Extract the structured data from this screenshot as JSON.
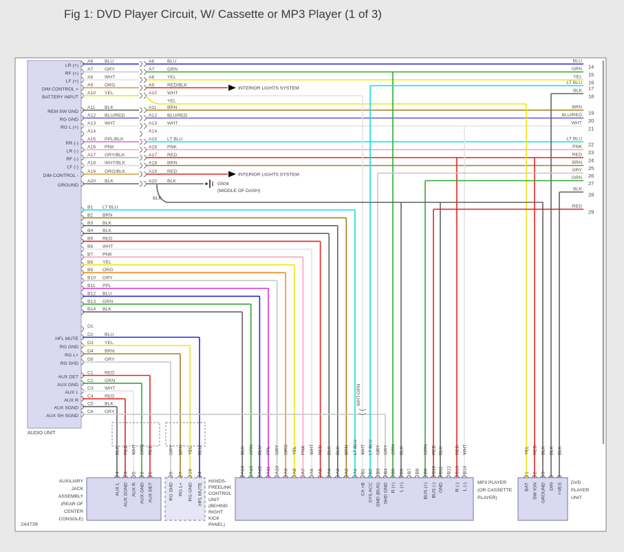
{
  "title": "Fig 1: DVD Player Circuit, W/ Cassette or MP3 Player (1 of 3)",
  "figure_code": "244738",
  "palette": {
    "BLU": "#2525d9",
    "GRN": "#2fa82f",
    "YEL": "#f2e50c",
    "LT BLU": "#0ae0e0",
    "BLK": "#616161",
    "BRN": "#a57d1c",
    "BLU/RED": "#6952d6",
    "WHT": "#e2e2e2",
    "PNK": "#ff9dbb",
    "RED": "#e42020",
    "GRY": "#c6c6c6",
    "ORG": "#ef8d20",
    "PPL": "#dd2fdd",
    "PPL/BLK": "#d465d4",
    "GRY/BLK": "#aeaeae",
    "WHT/BLK": "#d6d6d6",
    "ORG/BLK": "#d79a35",
    "RED/BLK": "#e42020",
    "WHT/GRN": "#cfe3cf"
  },
  "audio_unit": {
    "label": "AUDIO UNIT",
    "rows_a": [
      {
        "pin": "A6",
        "label": "LR (+)",
        "c1": "BLU",
        "c2": "BLU",
        "dest": "right",
        "num": "14"
      },
      {
        "pin": "A7",
        "label": "RF (+)",
        "c1": "GRY",
        "c2": "GRN",
        "dest": "right",
        "num": "15"
      },
      {
        "pin": "A8",
        "label": "LF (+)",
        "c1": "WHT",
        "c2": "YEL",
        "dest": "right",
        "num": "16"
      },
      {
        "pin": "A9",
        "label": "DIM CONTROL +",
        "c1": "ORG",
        "c2": "RED/BLK",
        "dest": "arrow"
      },
      {
        "pin": "A10",
        "label": "BATTERY INPUT",
        "c1": "YEL",
        "c2": "WHT",
        "dest": "down"
      },
      {
        "pin": "A11",
        "label": "REM SW GND",
        "c1": "BLK",
        "c2": "BRN",
        "dest": "right",
        "num": "19"
      },
      {
        "pin": "A12",
        "label": "RG GND",
        "c1": "BLU/RED",
        "c2": "BLU/RED",
        "dest": "right",
        "num": "20"
      },
      {
        "pin": "A13",
        "label": "RG L (+)",
        "c1": "WHT",
        "c2": "WHT",
        "dest": "right",
        "num": "21"
      },
      {
        "pin": "A14",
        "label": "",
        "c1": "",
        "c2": "",
        "dest": "none"
      },
      {
        "pin": "A15",
        "label": "RR (-)",
        "c1": "PPL/BLK",
        "c2": "LT BLU",
        "dest": "right",
        "num": "22"
      },
      {
        "pin": "A16",
        "label": "LR (-)",
        "c1": "PNK",
        "c2": "PNK",
        "dest": "right",
        "num": "23"
      },
      {
        "pin": "A17",
        "label": "RF (-)",
        "c1": "GRY/BLK",
        "c2": "RED",
        "dest": "right",
        "num": "24"
      },
      {
        "pin": "A18",
        "label": "LF (-)",
        "c1": "WHT/BLK",
        "c2": "BRN",
        "dest": "right",
        "num": "25"
      },
      {
        "pin": "A19",
        "label": "DIM CONTROL -",
        "c1": "ORG/BLK",
        "c2": "RED",
        "dest": "arrow"
      },
      {
        "pin": "A20",
        "label": "GROUND",
        "c1": "BLK",
        "c2": "BLK",
        "dest": "ground"
      }
    ],
    "rows_b": [
      {
        "pin": "B1",
        "color": "LT BLU"
      },
      {
        "pin": "B2",
        "color": "BRN"
      },
      {
        "pin": "B3",
        "color": "BLK"
      },
      {
        "pin": "B4",
        "color": "BLK"
      },
      {
        "pin": "B5",
        "color": "RED"
      },
      {
        "pin": "B6",
        "color": "WHT"
      },
      {
        "pin": "B7",
        "color": "PNK"
      },
      {
        "pin": "B8",
        "color": "YEL"
      },
      {
        "pin": "B9",
        "color": "ORG"
      },
      {
        "pin": "B10",
        "color": "GRY"
      },
      {
        "pin": "B11",
        "color": "PPL"
      },
      {
        "pin": "B12",
        "color": "BLU"
      },
      {
        "pin": "B13",
        "color": "GRN"
      },
      {
        "pin": "B14",
        "color": "BLK"
      }
    ],
    "rows_d": [
      {
        "pin": "D1",
        "label": "",
        "color": ""
      },
      {
        "pin": "D2",
        "label": "HFL MUTE",
        "color": "BLU"
      },
      {
        "pin": "D3",
        "label": "RG GND",
        "color": "YEL"
      },
      {
        "pin": "D4",
        "label": "RG L+",
        "color": "BRN"
      },
      {
        "pin": "D5",
        "label": "RG SHD",
        "color": "GRY"
      }
    ],
    "rows_c": [
      {
        "pin": "C1",
        "label": "AUX DET",
        "color": "RED"
      },
      {
        "pin": "C2",
        "label": "AUX GND",
        "color": "GRN"
      },
      {
        "pin": "C3",
        "label": "AUX L",
        "color": "WHT"
      },
      {
        "pin": "C4",
        "label": "AUX R",
        "color": "RED"
      },
      {
        "pin": "C5",
        "label": "AUX SGND",
        "color": "BLK"
      },
      {
        "pin": "C6",
        "label": "AUX SH SGND",
        "color": "GRY"
      }
    ]
  },
  "right_pins": [
    {
      "num": "14",
      "color": "BLU"
    },
    {
      "num": "15",
      "color": "GRN"
    },
    {
      "num": "16",
      "color": "YEL"
    },
    {
      "num": "17",
      "color": "LT BLU"
    },
    {
      "num": "18",
      "color": "BLK"
    },
    {
      "num": "19",
      "color": "BRN"
    },
    {
      "num": "20",
      "color": "BLU/RED"
    },
    {
      "num": "21",
      "color": "WHT"
    },
    {
      "num": "22",
      "color": "LT BLU"
    },
    {
      "num": "23",
      "color": "PNK"
    },
    {
      "num": "24",
      "color": "RED"
    },
    {
      "num": "25",
      "color": "BRN"
    },
    {
      "num": "26",
      "color": "GRY"
    },
    {
      "num": "27",
      "color": "GRN"
    },
    {
      "num": "28",
      "color": "BLK"
    },
    {
      "num": "29",
      "color": "RED"
    }
  ],
  "annotations": {
    "interior_lights": "INTERIOR LIGHTS SYSTEM",
    "ground_id": "G504",
    "ground_loc": "(MIDDLE OF DASH)",
    "splice": "WHT/GRN",
    "blk_branch": "BLK",
    "yel_branch": "YEL"
  },
  "connectors": {
    "aux_jack": {
      "name_lines": [
        "AUXILIARY",
        "JACK",
        "ASSEMBLY",
        "(REAR OF",
        "CENTER",
        "CONSOLE)"
      ],
      "pins": [
        {
          "num": "4",
          "color": "BLK",
          "label": "AUX L"
        },
        {
          "num": "3",
          "color": "RED",
          "label": "AUX SGND"
        },
        {
          "num": "5",
          "color": "WHT",
          "label": "AUX R"
        },
        {
          "num": "2",
          "color": "GRN",
          "label": "AUX GND"
        },
        {
          "num": "1",
          "color": "RED",
          "label": "AUX DET"
        }
      ]
    },
    "hfl": {
      "name_lines": [
        "HANDS-",
        "FREELINK",
        "CONTROL",
        "UNIT",
        "(BEHIND",
        "RIGHT",
        "KICK",
        "PANEL)"
      ],
      "pins": [
        {
          "num": "6",
          "color": "GRY",
          "label": "RG SHD"
        },
        {
          "num": "7",
          "color": "BRN",
          "label": "RG L+"
        },
        {
          "num": "19",
          "color": "YEL",
          "label": "RG GND"
        },
        {
          "num": "4",
          "color": "BLU",
          "label": "HFL MUTE"
        }
      ]
    },
    "mp3": {
      "name_lines": [
        "MP3 PLAYER",
        "(OR CASSETTE",
        "PLAYER)"
      ],
      "pins_a": [
        {
          "num": "A14",
          "color": "BLK"
        },
        {
          "num": "A13",
          "color": "GRN"
        },
        {
          "num": "A12",
          "color": "BLU"
        },
        {
          "num": "A11",
          "color": "PPL"
        },
        {
          "num": "A10",
          "color": "GRY"
        },
        {
          "num": "A9",
          "color": "ORG"
        },
        {
          "num": "A8",
          "color": "YEL"
        },
        {
          "num": "A7",
          "color": "PNK"
        },
        {
          "num": "A6",
          "color": "WHT"
        },
        {
          "num": "A5",
          "color": "RED"
        },
        {
          "num": "A4",
          "color": "BLK"
        },
        {
          "num": "A3",
          "color": "BLK"
        },
        {
          "num": "A2",
          "color": "BRN"
        },
        {
          "num": "A1",
          "color": "LT BLU"
        }
      ],
      "pins_b": [
        {
          "num": "B1",
          "color": "WHT",
          "label": "CA +B"
        },
        {
          "num": "B2",
          "color": "LT BLU",
          "label": "SYS ACC"
        },
        {
          "num": "B3",
          "color": "GRY",
          "label": "GND (BUS)"
        },
        {
          "num": "B4",
          "color": "GRY",
          "label": "SHD GND"
        },
        {
          "num": "B5",
          "color": "GRN",
          "label": "R (+)"
        },
        {
          "num": "B6",
          "color": "BLK",
          "label": "L (+)"
        },
        {
          "num": "B7",
          "color": "",
          "label": ""
        },
        {
          "num": "B8",
          "color": "",
          "label": ""
        },
        {
          "num": "B9",
          "color": "GRN",
          "label": "BUS (+)"
        },
        {
          "num": "B10",
          "color": "RED",
          "label": "BUS (-)"
        },
        {
          "num": "B11",
          "color": "BLK",
          "label": "GND"
        },
        {
          "num": "B12",
          "color": "",
          "label": ""
        },
        {
          "num": "B13",
          "color": "RED",
          "label": "R (-)"
        },
        {
          "num": "B14",
          "color": "WHT",
          "label": "L (-)"
        }
      ]
    },
    "dvd": {
      "name_lines": [
        "DVD",
        "PLAYER",
        "UNIT"
      ],
      "pins": [
        {
          "num": "1",
          "color": "YEL",
          "label": "BAT"
        },
        {
          "num": "2",
          "color": "RED",
          "label": "SW IGN"
        },
        {
          "num": "3",
          "color": "BLK",
          "label": "GROUND"
        },
        {
          "num": "",
          "color": "BLK",
          "label": "DIN"
        },
        {
          "num": "",
          "color": "BLK",
          "label": "I-VES"
        }
      ]
    }
  }
}
